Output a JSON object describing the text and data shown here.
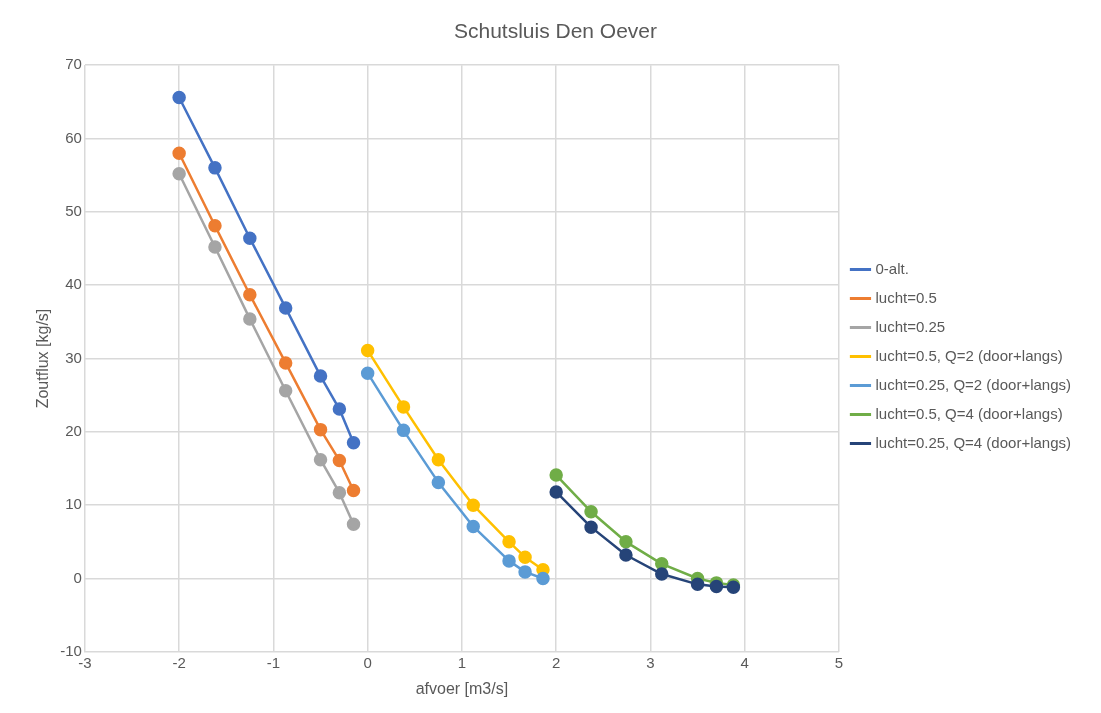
{
  "chart_data": {
    "type": "line",
    "title": "Schutsluis Den Oever",
    "xlabel": "afvoer [m3/s]",
    "ylabel": "Zoutflux [kg/s]",
    "xlim": [
      -3,
      5
    ],
    "xticks": [
      -3,
      -2,
      -1,
      0,
      1,
      2,
      3,
      4,
      5
    ],
    "ylim": [
      -10,
      70
    ],
    "yticks": [
      -10,
      0,
      10,
      20,
      30,
      40,
      50,
      60,
      70
    ],
    "grid": true,
    "legend": "right",
    "marker": "circle",
    "line_style": "solid",
    "series": [
      {
        "name": "0-alt.",
        "color": "#4472c4",
        "x": [
          -2,
          -1.62,
          -1.25,
          -0.87,
          -0.5,
          -0.3,
          -0.15
        ],
        "values": [
          65.6,
          56.0,
          46.4,
          36.9,
          27.6,
          23.1,
          18.5
        ]
      },
      {
        "name": "lucht=0.5",
        "color": "#ed7d31",
        "x": [
          -2,
          -1.62,
          -1.25,
          -0.87,
          -0.5,
          -0.3,
          -0.15
        ],
        "values": [
          58.0,
          48.1,
          38.7,
          29.4,
          20.3,
          16.1,
          12.0
        ]
      },
      {
        "name": "lucht=0.25",
        "color": "#a5a5a5",
        "x": [
          -2,
          -1.62,
          -1.25,
          -0.87,
          -0.5,
          -0.3,
          -0.15
        ],
        "values": [
          55.2,
          45.2,
          35.4,
          25.6,
          16.2,
          11.7,
          7.4
        ]
      },
      {
        "name": "lucht=0.5, Q=2 (door+langs)",
        "color": "#ffc000",
        "x": [
          0,
          0.38,
          0.75,
          1.12,
          1.5,
          1.67,
          1.86
        ],
        "values": [
          31.1,
          23.4,
          16.2,
          10.0,
          5.0,
          2.9,
          1.2
        ]
      },
      {
        "name": "lucht=0.25, Q=2 (door+langs)",
        "color": "#5b9bd5",
        "x": [
          0,
          0.38,
          0.75,
          1.12,
          1.5,
          1.67,
          1.86
        ],
        "values": [
          28.0,
          20.2,
          13.1,
          7.1,
          2.4,
          0.9,
          0
        ]
      },
      {
        "name": "lucht=0.5, Q=4 (door+langs)",
        "color": "#70ad47",
        "x": [
          2,
          2.37,
          2.74,
          3.12,
          3.5,
          3.7,
          3.88
        ],
        "values": [
          14.1,
          9.1,
          5.0,
          2.0,
          0,
          -0.6,
          -0.9
        ]
      },
      {
        "name": "lucht=0.25, Q=4 (door+langs)",
        "color": "#264478",
        "x": [
          2,
          2.37,
          2.74,
          3.12,
          3.5,
          3.7,
          3.88
        ],
        "values": [
          11.8,
          7.0,
          3.2,
          0.6,
          -0.8,
          -1.1,
          -1.2
        ]
      }
    ]
  }
}
